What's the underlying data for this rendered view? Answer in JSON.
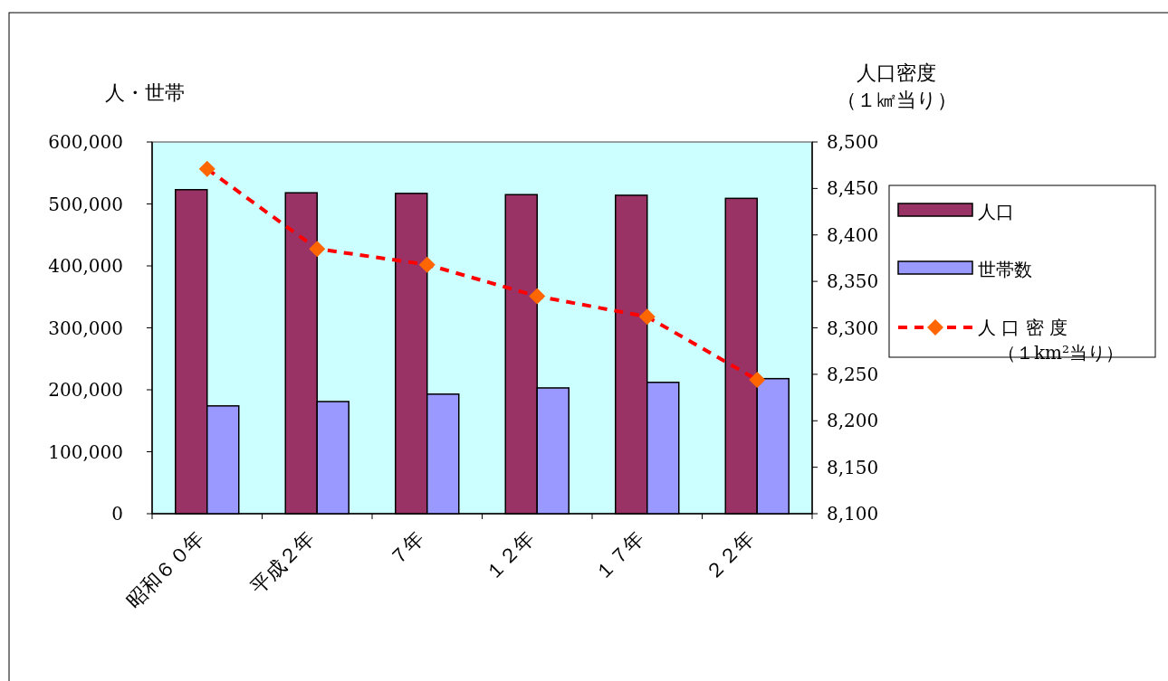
{
  "chart_data": {
    "type": "bar",
    "categories": [
      "昭和６０年",
      "平成２年",
      "７年",
      "１２年",
      "１７年",
      "２２年"
    ],
    "ylabel": "人・世帯",
    "y2label": "人口密度（１㎢当り）",
    "series": [
      {
        "name": "人口",
        "color": "#993366",
        "values": [
          523000,
          518000,
          517000,
          515000,
          514000,
          509000
        ]
      },
      {
        "name": "世帯数",
        "color": "#9999ff",
        "values": [
          174000,
          181000,
          193000,
          203000,
          212000,
          218000
        ]
      },
      {
        "name": "人 口 密 度（１km²当り）",
        "type": "line",
        "axis": "y2",
        "color": "#ff0000",
        "colors": [
          "#ff6600",
          "#ff6600",
          "#ff6600",
          "#ff6600",
          "#ff6600",
          "#ff6600"
        ],
        "marker": "diamond",
        "line_style": "dashed",
        "values": [
          8471,
          8385,
          8368,
          8334,
          8312,
          8244
        ]
      }
    ],
    "ylim": [
      0,
      600000
    ],
    "yticks": [
      {
        "value": 0,
        "label": "0"
      },
      {
        "value": 100000,
        "label": "100,000"
      },
      {
        "value": 200000,
        "label": "200,000"
      },
      {
        "value": 300000,
        "label": "300,000"
      },
      {
        "value": 400000,
        "label": "400,000"
      },
      {
        "value": 500000,
        "label": "500,000"
      },
      {
        "value": 600000,
        "label": "600,000"
      }
    ],
    "y2lim": [
      8100,
      8500
    ],
    "y2ticks": [
      {
        "value": 8100,
        "label": "8,100"
      },
      {
        "value": 8150,
        "label": "8,150"
      },
      {
        "value": 8200,
        "label": "8,200"
      },
      {
        "value": 8250,
        "label": "8,250"
      },
      {
        "value": 8300,
        "label": "8,300"
      },
      {
        "value": 8350,
        "label": "8,350"
      },
      {
        "value": 8400,
        "label": "8,400"
      },
      {
        "value": 8450,
        "label": "8,450"
      },
      {
        "value": 8500,
        "label": "8,500"
      }
    ],
    "legend": "right",
    "grid": false
  }
}
